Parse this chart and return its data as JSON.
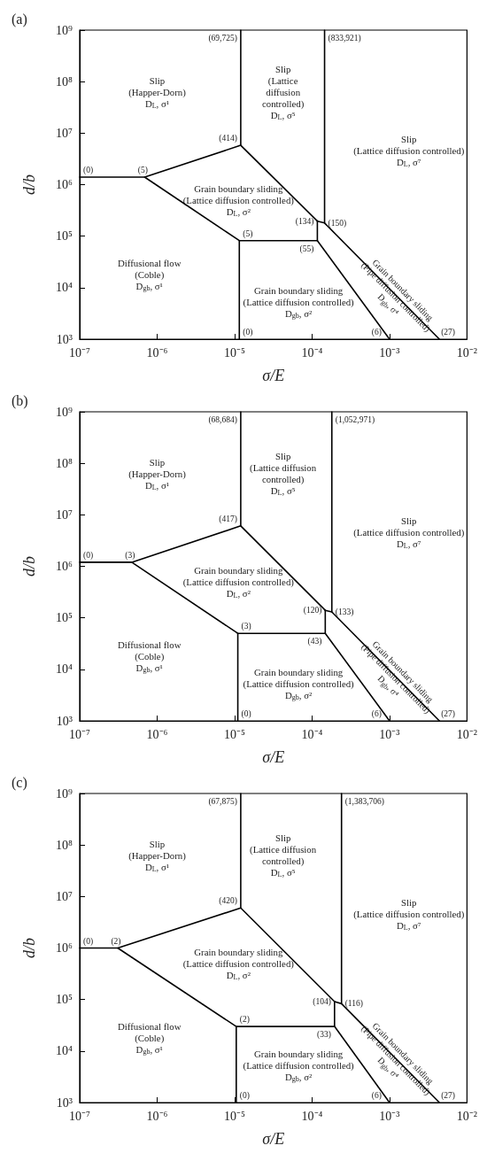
{
  "chart_data": [
    {
      "type": "line",
      "title": "(a)",
      "xlabel": "σ/E",
      "ylabel": "d/b",
      "log": "xy",
      "marker": "none",
      "line_style": "solid",
      "xlim": [
        1e-07,
        0.01
      ],
      "ylim": [
        1000,
        1000000000
      ],
      "xticks": [
        {
          "value": 1e-07,
          "label": "10⁻⁷"
        },
        {
          "value": 1e-06,
          "label": "10⁻⁶"
        },
        {
          "value": 1e-05,
          "label": "10⁻⁵"
        },
        {
          "value": 0.0001,
          "label": "10⁻⁴"
        },
        {
          "value": 0.001,
          "label": "10⁻³"
        },
        {
          "value": 0.01,
          "label": "10⁻²"
        }
      ],
      "yticks": [
        {
          "value": 1000,
          "label": "10³"
        },
        {
          "value": 10000,
          "label": "10⁴"
        },
        {
          "value": 100000,
          "label": "10⁵"
        },
        {
          "value": 1000000,
          "label": "10⁶"
        },
        {
          "value": 10000000,
          "label": "10⁷"
        },
        {
          "value": 100000000,
          "label": "10⁸"
        },
        {
          "value": 1000000000,
          "label": "10⁹"
        }
      ],
      "series": [
        {
          "color": "#000000",
          "x": [
            1e-07,
            6.9e-07,
            1.2e-05,
            0.000117
          ],
          "values": [
            1400000,
            1400000,
            5800000,
            196000
          ]
        },
        {
          "color": "#000000",
          "x": [
            1.2e-05,
            1.2e-05
          ],
          "values": [
            5800000,
            1000000000
          ]
        },
        {
          "color": "#000000",
          "x": [
            6.9e-07,
            1.15e-05,
            0.000117,
            0.000117
          ],
          "values": [
            1400000,
            82000,
            82000,
            196000
          ]
        },
        {
          "color": "#000000",
          "x": [
            1.15e-05,
            1.15e-05
          ],
          "values": [
            82000,
            1000
          ]
        },
        {
          "color": "#000000",
          "x": [
            0.000117,
            0.001
          ],
          "values": [
            82000,
            1000
          ]
        },
        {
          "color": "#000000",
          "x": [
            0.000145,
            0.000145
          ],
          "values": [
            180000,
            1000000000
          ]
        },
        {
          "color": "#000000",
          "x": [
            0.000117,
            0.000145,
            0.0044
          ],
          "values": [
            196000,
            180000,
            1000
          ]
        }
      ],
      "annotations": [
        "Slip\n(Happer-Dorn)\nD$_{L}$, σ¹",
        "Slip\n(Lattice\ndiffusion\ncontrolled)\nD$_{L}$, σ⁵",
        "Slip\n(Lattice diffusion controlled)\nD$_{L}$, σ⁷",
        "Grain boundary sliding\n(Lattice diffusion controlled)\nD$_{L}$, σ²",
        "Diffusional flow\n(Coble)\nD$_{gb}$, σ¹",
        "Grain boundary sliding\n(Lattice diffusion controlled)\nD$_{gb}$, σ²",
        "Grain boundary sliding\n(Pipe diffusion controlled)\nD$_{gb}$, σ⁴",
        {
          "text": "(0)",
          "x": 1e-07,
          "y": 1400000
        },
        {
          "text": "(5)",
          "x": 6.9e-07,
          "y": 1400000
        },
        {
          "text": "(69,725)",
          "x": 1.2e-05,
          "y": 1000000000
        },
        {
          "text": "(833,921)",
          "x": 0.000145,
          "y": 1000000000
        },
        {
          "text": "(414)",
          "x": 1.2e-05,
          "y": 5800000
        },
        {
          "text": "(134)",
          "x": 0.000117,
          "y": 196000
        },
        {
          "text": "(150)",
          "x": 0.000145,
          "y": 180000
        },
        {
          "text": "(5)",
          "x": 1.15e-05,
          "y": 82000
        },
        {
          "text": "(55)",
          "x": 0.000117,
          "y": 82000
        },
        {
          "text": "(0)",
          "x": 1.15e-05,
          "y": 1000
        },
        {
          "text": "(6)",
          "x": 0.001,
          "y": 1000
        },
        {
          "text": "(27)",
          "x": 0.0044,
          "y": 1000
        }
      ]
    },
    {
      "type": "line",
      "title": "(b)",
      "xlabel": "σ/E",
      "ylabel": "d/b",
      "log": "xy",
      "marker": "none",
      "line_style": "solid",
      "xlim": [
        1e-07,
        0.01
      ],
      "ylim": [
        1000,
        1000000000
      ],
      "xticks": [
        {
          "value": 1e-07,
          "label": "10⁻⁷"
        },
        {
          "value": 1e-06,
          "label": "10⁻⁶"
        },
        {
          "value": 1e-05,
          "label": "10⁻⁵"
        },
        {
          "value": 0.0001,
          "label": "10⁻⁴"
        },
        {
          "value": 0.001,
          "label": "10⁻³"
        },
        {
          "value": 0.01,
          "label": "10⁻²"
        }
      ],
      "yticks": [
        {
          "value": 1000,
          "label": "10³"
        },
        {
          "value": 10000,
          "label": "10⁴"
        },
        {
          "value": 100000,
          "label": "10⁵"
        },
        {
          "value": 1000000,
          "label": "10⁶"
        },
        {
          "value": 10000000,
          "label": "10⁷"
        },
        {
          "value": 100000000,
          "label": "10⁸"
        },
        {
          "value": 1000000000,
          "label": "10⁹"
        }
      ],
      "series": [
        {
          "color": "#000000",
          "x": [
            1e-07,
            4.7e-07,
            1.2e-05,
            0.000148
          ],
          "values": [
            1200000,
            1200000,
            6100000,
            140000
          ]
        },
        {
          "color": "#000000",
          "x": [
            1.2e-05,
            1.2e-05
          ],
          "values": [
            6100000,
            1000000000
          ]
        },
        {
          "color": "#000000",
          "x": [
            4.7e-07,
            1.1e-05,
            0.000148,
            0.000148
          ],
          "values": [
            1200000,
            50000,
            50000,
            140000
          ]
        },
        {
          "color": "#000000",
          "x": [
            1.1e-05,
            1.1e-05
          ],
          "values": [
            50000,
            1000
          ]
        },
        {
          "color": "#000000",
          "x": [
            0.000148,
            0.001
          ],
          "values": [
            50000,
            1000
          ]
        },
        {
          "color": "#000000",
          "x": [
            0.00018,
            0.00018
          ],
          "values": [
            130000,
            1000000000
          ]
        },
        {
          "color": "#000000",
          "x": [
            0.000148,
            0.00018,
            0.0044
          ],
          "values": [
            140000,
            130000,
            1000
          ]
        }
      ],
      "annotations": [
        "Slip\n(Happer-Dorn)\nD$_{L}$, σ¹",
        "Slip\n(Lattice diffusion\ncontrolled)\nD$_{L}$, σ⁵",
        "Slip\n(Lattice diffusion controlled)\nD$_{L}$, σ⁷",
        "Grain boundary sliding\n(Lattice diffusion controlled)\nD$_{L}$, σ²",
        "Diffusional flow\n(Coble)\nD$_{gb}$, σ¹",
        "Grain boundary sliding\n(Lattice diffusion controlled)\nD$_{gb}$, σ²",
        "Grain boundary sliding\n(Pipe diffusion controlled)\nD$_{gb}$, σ⁴",
        {
          "text": "(0)",
          "x": 1e-07,
          "y": 1200000
        },
        {
          "text": "(3)",
          "x": 4.7e-07,
          "y": 1200000
        },
        {
          "text": "(68,684)",
          "x": 1.2e-05,
          "y": 1000000000
        },
        {
          "text": "(1,052,971)",
          "x": 0.00018,
          "y": 1000000000
        },
        {
          "text": "(417)",
          "x": 1.2e-05,
          "y": 6100000
        },
        {
          "text": "(120)",
          "x": 0.000148,
          "y": 140000
        },
        {
          "text": "(133)",
          "x": 0.00018,
          "y": 130000
        },
        {
          "text": "(3)",
          "x": 1.1e-05,
          "y": 50000
        },
        {
          "text": "(43)",
          "x": 0.000148,
          "y": 50000
        },
        {
          "text": "(0)",
          "x": 1.1e-05,
          "y": 1000
        },
        {
          "text": "(6)",
          "x": 0.001,
          "y": 1000
        },
        {
          "text": "(27)",
          "x": 0.0044,
          "y": 1000
        }
      ]
    },
    {
      "type": "line",
      "title": "(c)",
      "xlabel": "σ/E",
      "ylabel": "d/b",
      "log": "xy",
      "marker": "none",
      "line_style": "solid",
      "xlim": [
        1e-07,
        0.01
      ],
      "ylim": [
        1000,
        1000000000
      ],
      "xticks": [
        {
          "value": 1e-07,
          "label": "10⁻⁷"
        },
        {
          "value": 1e-06,
          "label": "10⁻⁶"
        },
        {
          "value": 1e-05,
          "label": "10⁻⁵"
        },
        {
          "value": 0.0001,
          "label": "10⁻⁴"
        },
        {
          "value": 0.001,
          "label": "10⁻³"
        },
        {
          "value": 0.01,
          "label": "10⁻²"
        }
      ],
      "yticks": [
        {
          "value": 1000,
          "label": "10³"
        },
        {
          "value": 10000,
          "label": "10⁴"
        },
        {
          "value": 100000,
          "label": "10⁵"
        },
        {
          "value": 1000000,
          "label": "10⁶"
        },
        {
          "value": 10000000,
          "label": "10⁷"
        },
        {
          "value": 100000000,
          "label": "10⁸"
        },
        {
          "value": 1000000000,
          "label": "10⁹"
        }
      ],
      "series": [
        {
          "color": "#000000",
          "x": [
            1e-07,
            3.1e-07,
            1.2e-05,
            0.000195
          ],
          "values": [
            1000000,
            1000000,
            6000000,
            91000
          ]
        },
        {
          "color": "#000000",
          "x": [
            1.2e-05,
            1.2e-05
          ],
          "values": [
            6000000,
            1000000000
          ]
        },
        {
          "color": "#000000",
          "x": [
            3.1e-07,
            1.05e-05,
            0.000195,
            0.000195
          ],
          "values": [
            1000000,
            30000,
            30000,
            91000
          ]
        },
        {
          "color": "#000000",
          "x": [
            1.05e-05,
            1.05e-05
          ],
          "values": [
            30000,
            1000
          ]
        },
        {
          "color": "#000000",
          "x": [
            0.000195,
            0.001
          ],
          "values": [
            30000,
            1000
          ]
        },
        {
          "color": "#000000",
          "x": [
            0.00024,
            0.00024
          ],
          "values": [
            83000,
            1000000000
          ]
        },
        {
          "color": "#000000",
          "x": [
            0.000195,
            0.00024,
            0.0044
          ],
          "values": [
            91000,
            83000,
            1000
          ]
        }
      ],
      "annotations": [
        "Slip\n(Happer-Dorn)\nD$_{L}$, σ¹",
        "Slip\n(Lattice diffusion\ncontrolled)\nD$_{L}$, σ⁵",
        "Slip\n(Lattice diffusion controlled)\nD$_{L}$, σ⁷",
        "Grain boundary sliding\n(Lattice diffusion controlled)\nD$_{L}$, σ²",
        "Diffusional flow\n(Coble)\nD$_{gb}$, σ¹",
        "Grain boundary sliding\n(Lattice diffusion controlled)\nD$_{gb}$, σ²",
        "Grain boundary sliding\n(Pipe diffusion controlled)\nD$_{gb}$, σ⁴",
        {
          "text": "(0)",
          "x": 1e-07,
          "y": 1000000
        },
        {
          "text": "(2)",
          "x": 3.1e-07,
          "y": 1000000
        },
        {
          "text": "(67,875)",
          "x": 1.2e-05,
          "y": 1000000000
        },
        {
          "text": "(1,383,706)",
          "x": 0.00024,
          "y": 1000000000
        },
        {
          "text": "(420)",
          "x": 1.2e-05,
          "y": 6000000
        },
        {
          "text": "(104)",
          "x": 0.000195,
          "y": 91000
        },
        {
          "text": "(116)",
          "x": 0.00024,
          "y": 83000
        },
        {
          "text": "(2)",
          "x": 1.05e-05,
          "y": 30000
        },
        {
          "text": "(33)",
          "x": 0.000195,
          "y": 30000
        },
        {
          "text": "(0)",
          "x": 1.05e-05,
          "y": 1000
        },
        {
          "text": "(6)",
          "x": 0.001,
          "y": 1000
        },
        {
          "text": "(27)",
          "x": 0.0044,
          "y": 1000
        }
      ]
    }
  ]
}
